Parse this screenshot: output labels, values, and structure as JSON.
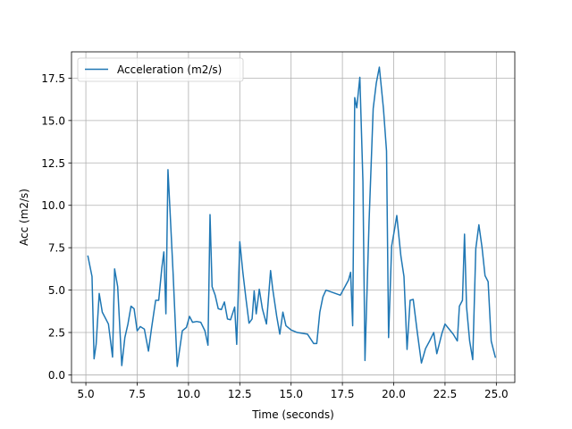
{
  "chart_data": {
    "type": "line",
    "xlabel": "Time (seconds)",
    "ylabel": "Acc (m2/s)",
    "xlim": [
      4.3,
      25.9
    ],
    "ylim": [
      -0.45,
      19.05
    ],
    "x_ticks": [
      5.0,
      7.5,
      10.0,
      12.5,
      15.0,
      17.5,
      20.0,
      22.5,
      25.0
    ],
    "x_tick_labels": [
      "5.0",
      "7.5",
      "10.0",
      "12.5",
      "15.0",
      "17.5",
      "20.0",
      "22.5",
      "25.0"
    ],
    "y_ticks": [
      0.0,
      2.5,
      5.0,
      7.5,
      10.0,
      12.5,
      15.0,
      17.5
    ],
    "y_tick_labels": [
      "0.0",
      "2.5",
      "5.0",
      "7.5",
      "10.0",
      "12.5",
      "15.0",
      "17.5"
    ],
    "grid": true,
    "legend_position": "top-left",
    "line_color": "#1f77b4",
    "series": [
      {
        "name": "Acceleration (m2/s)",
        "x": [
          5.1,
          5.3,
          5.4,
          5.5,
          5.65,
          5.8,
          6.1,
          6.3,
          6.4,
          6.55,
          6.75,
          6.9,
          7.05,
          7.2,
          7.35,
          7.5,
          7.65,
          7.85,
          8.05,
          8.2,
          8.4,
          8.55,
          8.7,
          8.8,
          8.9,
          9.0,
          9.1,
          9.25,
          9.45,
          9.7,
          9.9,
          10.05,
          10.2,
          10.4,
          10.6,
          10.8,
          10.95,
          11.05,
          11.15,
          11.3,
          11.45,
          11.6,
          11.75,
          11.9,
          12.05,
          12.25,
          12.35,
          12.5,
          12.65,
          12.8,
          12.95,
          13.1,
          13.2,
          13.3,
          13.45,
          13.6,
          13.8,
          14.0,
          14.1,
          14.3,
          14.45,
          14.6,
          14.75,
          15.0,
          15.3,
          15.8,
          16.1,
          16.25,
          16.4,
          16.55,
          16.7,
          17.4,
          17.8,
          17.9,
          18.0,
          18.1,
          18.2,
          18.35,
          18.5,
          18.6,
          18.8,
          19.0,
          19.15,
          19.3,
          19.5,
          19.65,
          19.75,
          19.9,
          20.05,
          20.15,
          20.35,
          20.5,
          20.65,
          20.8,
          20.95,
          21.15,
          21.35,
          21.55,
          21.75,
          21.95,
          22.1,
          22.35,
          22.5,
          22.7,
          22.9,
          23.1,
          23.2,
          23.35,
          23.45,
          23.55,
          23.7,
          23.85,
          24.0,
          24.15,
          24.3,
          24.45,
          24.6,
          24.75,
          24.95
        ],
        "values": [
          7.0,
          5.8,
          0.95,
          1.8,
          4.8,
          3.7,
          3.0,
          1.05,
          6.25,
          5.2,
          0.55,
          2.2,
          3.0,
          4.05,
          3.9,
          2.6,
          2.85,
          2.7,
          1.4,
          2.75,
          4.4,
          4.4,
          6.3,
          7.25,
          3.6,
          12.1,
          9.7,
          6.0,
          0.5,
          2.6,
          2.8,
          3.45,
          3.1,
          3.15,
          3.1,
          2.6,
          1.75,
          9.45,
          5.2,
          4.7,
          3.9,
          3.85,
          4.3,
          3.3,
          3.25,
          4.0,
          1.8,
          7.85,
          6.05,
          4.5,
          3.05,
          3.3,
          4.95,
          3.6,
          5.05,
          3.9,
          3.0,
          6.15,
          5.1,
          3.45,
          2.4,
          3.7,
          2.9,
          2.65,
          2.5,
          2.4,
          1.85,
          1.85,
          3.7,
          4.6,
          5.0,
          4.7,
          5.6,
          6.05,
          2.9,
          16.35,
          15.75,
          17.55,
          11.4,
          0.85,
          9.05,
          15.7,
          17.2,
          18.15,
          15.7,
          13.2,
          2.2,
          7.6,
          8.65,
          9.4,
          7.0,
          5.8,
          1.5,
          4.4,
          4.45,
          2.5,
          0.7,
          1.55,
          2.0,
          2.5,
          1.25,
          2.45,
          3.0,
          2.7,
          2.4,
          2.0,
          4.05,
          4.4,
          8.3,
          4.0,
          2.0,
          0.9,
          7.45,
          8.85,
          7.55,
          5.85,
          5.5,
          2.0,
          1.05
        ]
      }
    ]
  }
}
